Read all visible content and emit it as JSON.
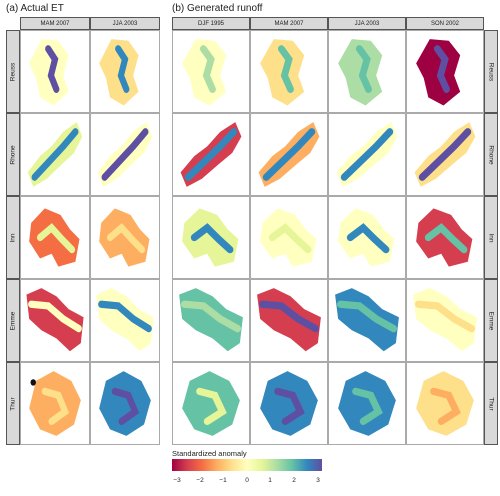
{
  "panels": {
    "left_title": "(a) Actual ET",
    "right_title": "(b) Generated runoff"
  },
  "columns_left": [
    "MAM 2007",
    "JJA 2003"
  ],
  "columns_right": [
    "DJF 1995",
    "MAM 2007",
    "JJA 2003",
    "SON 2002"
  ],
  "rows": [
    "Reuss",
    "Rhone",
    "Inn",
    "Emme",
    "Thur"
  ],
  "legend": {
    "title": "Standardized anomaly",
    "ticks": [
      "−3",
      "−2",
      "−1",
      "0",
      "1",
      "2",
      "3"
    ]
  },
  "map_colors": [
    [
      "#ffffbf",
      "#5e4fa2"
    ],
    [
      "#fee08b",
      "#3288bd"
    ],
    [
      "#ffffbf",
      "#abdda4"
    ],
    [
      "#fee08b",
      "#66c2a5"
    ],
    [
      "#abdda4",
      "#66c2a5"
    ],
    [
      "#9e0142",
      "#5e4fa2"
    ],
    [
      "#e6f598",
      "#3288bd"
    ],
    [
      "#ffffbf",
      "#5e4fa2"
    ],
    [
      "#d53e4f",
      "#3288bd"
    ],
    [
      "#fdae61",
      "#3288bd"
    ],
    [
      "#ffffbf",
      "#3288bd"
    ],
    [
      "#fee08b",
      "#5e4fa2"
    ],
    [
      "#f46d43",
      "#e6f598"
    ],
    [
      "#fdae61",
      "#fee08b"
    ],
    [
      "#e6f598",
      "#3288bd"
    ],
    [
      "#ffffbf",
      "#e6f598"
    ],
    [
      "#ffffbf",
      "#3288bd"
    ],
    [
      "#d53e4f",
      "#66c2a5"
    ],
    [
      "#d53e4f",
      "#ffffbf"
    ],
    [
      "#ffffbf",
      "#3288bd"
    ],
    [
      "#66c2a5",
      "#abdda4"
    ],
    [
      "#d53e4f",
      "#5e4fa2"
    ],
    [
      "#3288bd",
      "#66c2a5"
    ],
    [
      "#ffffbf",
      "#fee08b"
    ],
    [
      "#fdae61",
      "#fee08b"
    ],
    [
      "#3288bd",
      "#5e4fa2"
    ],
    [
      "#66c2a5",
      "#e6f598"
    ],
    [
      "#3288bd",
      "#5e4fa2"
    ],
    [
      "#3288bd",
      "#66c2a5"
    ],
    [
      "#fee08b",
      "#fdae61"
    ],
    [
      "#d53e4f",
      "#f46d43"
    ],
    [
      "#3288bd",
      "#5e4fa2"
    ]
  ]
}
